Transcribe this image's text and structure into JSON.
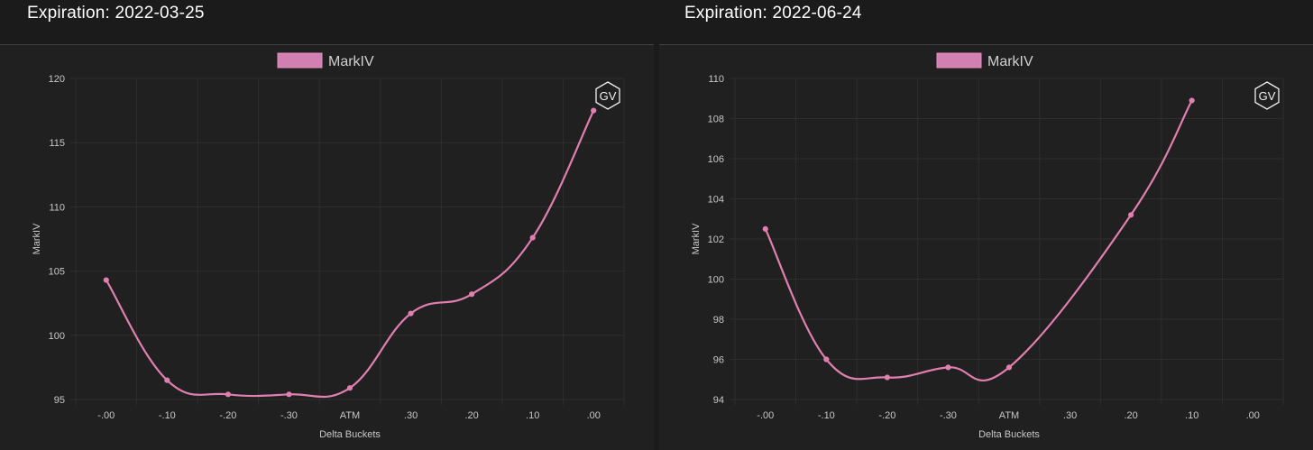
{
  "colors": {
    "series": "#e07fb0",
    "legend_fill": "#d27fb1",
    "legend_stroke": "#e88cc0",
    "grid": "#2e2e2e",
    "tick_text": "#c8c8c8",
    "page_bg": "#1b1b1b",
    "chart_bg": "#202020"
  },
  "watermark": "GV",
  "chart_data": [
    {
      "type": "line",
      "title": "Expiration: 2022-03-25",
      "xlabel": "Delta Buckets",
      "ylabel": "MarkIV",
      "legend": [
        "MarkIV"
      ],
      "legend_position": "top-center",
      "grid": true,
      "categories": [
        "-.00",
        "-.10",
        "-.20",
        "-.30",
        "ATM",
        ".30",
        ".20",
        ".10",
        ".00"
      ],
      "ylim": [
        95,
        120
      ],
      "yticks": [
        "120",
        "115",
        "110",
        "105",
        "100",
        "95"
      ],
      "series": [
        {
          "name": "MarkIV",
          "values": [
            104.3,
            96.5,
            95.4,
            95.4,
            95.9,
            101.7,
            103.2,
            107.6,
            117.5
          ]
        }
      ]
    },
    {
      "type": "line",
      "title": "Expiration: 2022-06-24",
      "xlabel": "Delta Buckets",
      "ylabel": "MarkIV",
      "legend": [
        "MarkIV"
      ],
      "legend_position": "top-center",
      "grid": true,
      "categories": [
        "-.00",
        "-.10",
        "-.20",
        "-.30",
        "ATM",
        ".30",
        ".20",
        ".10",
        ".00"
      ],
      "ylim": [
        94,
        110
      ],
      "yticks": [
        "110",
        "108",
        "106",
        "104",
        "102",
        "100",
        "98",
        "96",
        "94"
      ],
      "series": [
        {
          "name": "MarkIV",
          "values": [
            102.5,
            96.0,
            95.1,
            95.6,
            95.6,
            null,
            103.2,
            108.9,
            null
          ]
        }
      ]
    }
  ]
}
